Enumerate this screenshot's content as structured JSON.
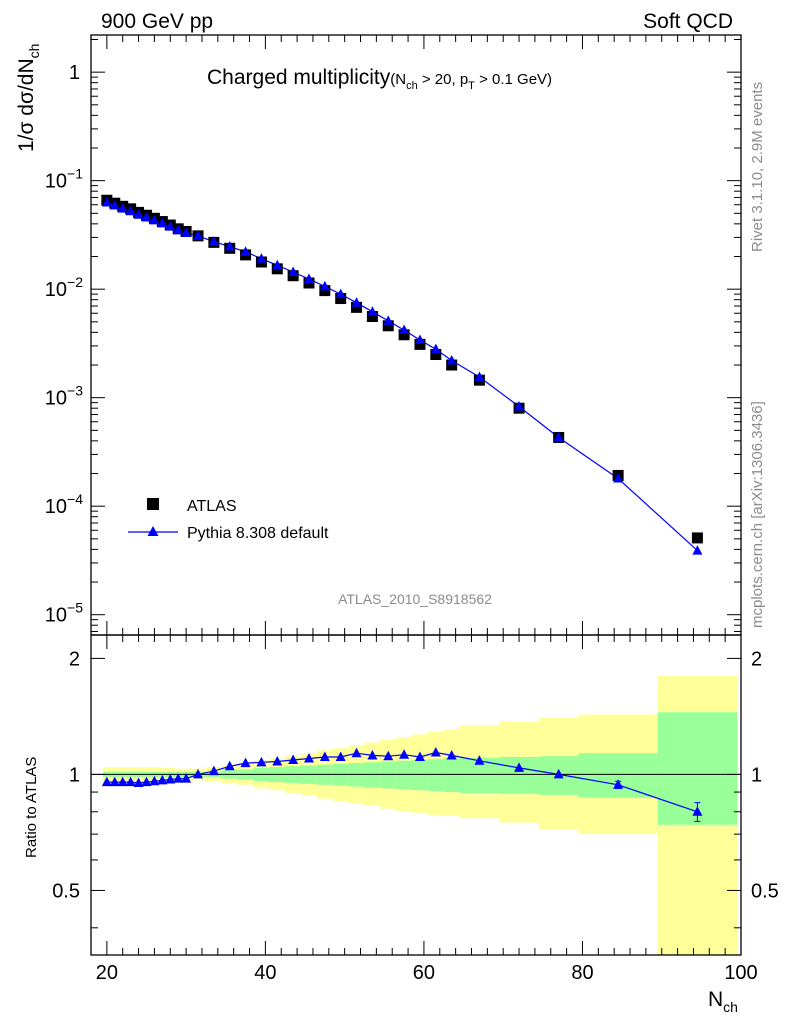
{
  "header": {
    "left": "900 GeV pp",
    "right": "Soft QCD"
  },
  "title": {
    "main": "Charged multiplicity",
    "cuts_open": "(N",
    "cuts_sub1": "ch",
    "cuts_mid": " > 20, p",
    "cuts_sub2": "T",
    "cuts_end": " > 0.1 GeV)"
  },
  "side_labels": {
    "rivet": "Rivet 3.1.10,  2.9M events",
    "mcplots": "mcplots.cern.ch [arXiv:1306.3436]"
  },
  "analysis_id": "ATLAS_2010_S8918562",
  "axes": {
    "ylabel_main": "1/σ dσ/dN",
    "ylabel_main_sub": "ch",
    "ylabel_ratio": "Ratio to ATLAS",
    "xlabel": "N",
    "xlabel_sub": "ch",
    "x_ticks": [
      "20",
      "40",
      "60",
      "80",
      "100"
    ],
    "y_main_ticks": [
      {
        "v": 1,
        "base": "1",
        "exp": ""
      },
      {
        "v": 0.1,
        "base": "10",
        "exp": "−1"
      },
      {
        "v": 0.01,
        "base": "10",
        "exp": "−2"
      },
      {
        "v": 0.001,
        "base": "10",
        "exp": "−3"
      },
      {
        "v": 0.0001,
        "base": "10",
        "exp": "−4"
      },
      {
        "v": 1e-05,
        "base": "10",
        "exp": "−5"
      }
    ],
    "y_ratio_ticks": [
      {
        "v": 2,
        "label": "2"
      },
      {
        "v": 1,
        "label": "1"
      },
      {
        "v": 0.5,
        "label": "0.5"
      }
    ]
  },
  "legend": {
    "position": "lower-left",
    "atlas": "ATLAS",
    "pythia": "Pythia 8.308 default"
  },
  "chart_data": {
    "type": "scatter",
    "title": "Charged multiplicity",
    "xlabel": "Nch",
    "ylabel": "1/σ dσ/dNch",
    "xlim": [
      18,
      100
    ],
    "ylim": [
      6.5e-06,
      2.2
    ],
    "y_scale": "log",
    "ratio_ylim": [
      0.34,
      2.3
    ],
    "ratio_y_scale": "log",
    "colors": {
      "atlas": "#000000",
      "pythia": "#0000ff",
      "band_inner": "#99ff99",
      "band_outer": "#ffff99"
    },
    "atlas": {
      "name": "ATLAS",
      "x": [
        20,
        21,
        22,
        23,
        24,
        25,
        26,
        27,
        28,
        29,
        30,
        31.5,
        33.5,
        35.5,
        37.5,
        39.5,
        41.5,
        43.5,
        45.5,
        47.5,
        49.5,
        51.5,
        53.5,
        55.5,
        57.5,
        59.5,
        61.5,
        63.5,
        67,
        72,
        77,
        84.5,
        94.5
      ],
      "y": [
        0.066,
        0.062,
        0.058,
        0.055,
        0.051,
        0.048,
        0.045,
        0.042,
        0.039,
        0.036,
        0.034,
        0.031,
        0.027,
        0.0238,
        0.0207,
        0.0178,
        0.0154,
        0.0133,
        0.0114,
        0.0097,
        0.0082,
        0.0068,
        0.0056,
        0.0046,
        0.0038,
        0.0031,
        0.0025,
        0.002,
        0.00145,
        0.0008,
        0.00043,
        0.000192,
        5.1e-05
      ]
    },
    "pythia": {
      "name": "Pythia 8.308 default",
      "x": [
        20,
        21,
        22,
        23,
        24,
        25,
        26,
        27,
        28,
        29,
        30,
        31.5,
        33.5,
        35.5,
        37.5,
        39.5,
        41.5,
        43.5,
        45.5,
        47.5,
        49.5,
        51.5,
        53.5,
        55.5,
        57.5,
        59.5,
        61.5,
        63.5,
        67,
        72,
        77,
        84.5,
        94.5
      ],
      "y": [
        0.063,
        0.059,
        0.0552,
        0.0522,
        0.0485,
        0.0458,
        0.0431,
        0.0404,
        0.0377,
        0.0349,
        0.033,
        0.031,
        0.0274,
        0.0247,
        0.0221,
        0.0191,
        0.0166,
        0.0144,
        0.0124,
        0.0106,
        0.009,
        0.0075,
        0.0062,
        0.0051,
        0.0042,
        0.0034,
        0.0028,
        0.0022,
        0.00155,
        0.00083,
        0.00043,
        0.00018,
        3.9e-05
      ]
    },
    "ratio": {
      "x": [
        20,
        21,
        22,
        23,
        24,
        25,
        26,
        27,
        28,
        29,
        30,
        31.5,
        33.5,
        35.5,
        37.5,
        39.5,
        41.5,
        43.5,
        45.5,
        47.5,
        49.5,
        51.5,
        53.5,
        55.5,
        57.5,
        59.5,
        61.5,
        63.5,
        67,
        72,
        77,
        84.5,
        94.5
      ],
      "y": [
        0.955,
        0.955,
        0.955,
        0.955,
        0.95,
        0.955,
        0.96,
        0.965,
        0.97,
        0.975,
        0.975,
        1.0,
        1.02,
        1.05,
        1.07,
        1.075,
        1.08,
        1.09,
        1.1,
        1.11,
        1.11,
        1.135,
        1.12,
        1.115,
        1.125,
        1.11,
        1.14,
        1.12,
        1.085,
        1.04,
        1.0,
        0.94,
        0.8
      ],
      "yerr": [
        0,
        0,
        0,
        0,
        0,
        0,
        0,
        0,
        0,
        0,
        0,
        0,
        0,
        0,
        0,
        0,
        0,
        0,
        0,
        0,
        0,
        0,
        0,
        0,
        0,
        0,
        0,
        0,
        0,
        0,
        0,
        0.02,
        0.045
      ]
    },
    "bands": {
      "edges": [
        19.5,
        20.5,
        21.5,
        22.5,
        23.5,
        24.5,
        25.5,
        26.5,
        27.5,
        28.5,
        29.5,
        30.5,
        32.5,
        34.5,
        36.5,
        38.5,
        40.5,
        42.5,
        44.5,
        46.5,
        48.5,
        50.5,
        52.5,
        54.5,
        56.5,
        58.5,
        60.5,
        62.5,
        64.5,
        69.5,
        74.5,
        79.5,
        89.5,
        99.5
      ],
      "inner_lo": [
        0.985,
        0.985,
        0.985,
        0.985,
        0.985,
        0.985,
        0.985,
        0.985,
        0.985,
        0.985,
        0.985,
        0.985,
        0.983,
        0.975,
        0.97,
        0.96,
        0.955,
        0.95,
        0.945,
        0.94,
        0.935,
        0.93,
        0.925,
        0.92,
        0.915,
        0.91,
        0.905,
        0.9,
        0.895,
        0.89,
        0.885,
        0.87,
        0.74
      ],
      "inner_hi": [
        1.015,
        1.015,
        1.015,
        1.015,
        1.015,
        1.015,
        1.015,
        1.015,
        1.015,
        1.015,
        1.015,
        1.015,
        1.017,
        1.025,
        1.03,
        1.04,
        1.045,
        1.05,
        1.055,
        1.06,
        1.065,
        1.07,
        1.075,
        1.08,
        1.085,
        1.09,
        1.095,
        1.1,
        1.105,
        1.11,
        1.115,
        1.135,
        1.45
      ],
      "outer_lo": [
        0.955,
        0.955,
        0.955,
        0.955,
        0.955,
        0.955,
        0.955,
        0.96,
        0.96,
        0.965,
        0.965,
        0.965,
        0.96,
        0.95,
        0.94,
        0.92,
        0.91,
        0.895,
        0.88,
        0.865,
        0.85,
        0.84,
        0.83,
        0.815,
        0.8,
        0.795,
        0.785,
        0.78,
        0.77,
        0.75,
        0.72,
        0.7,
        0.3
      ],
      "outer_hi": [
        1.045,
        1.045,
        1.045,
        1.045,
        1.045,
        1.045,
        1.045,
        1.04,
        1.04,
        1.035,
        1.035,
        1.035,
        1.045,
        1.055,
        1.07,
        1.085,
        1.1,
        1.115,
        1.135,
        1.155,
        1.17,
        1.19,
        1.21,
        1.23,
        1.25,
        1.27,
        1.29,
        1.31,
        1.34,
        1.37,
        1.4,
        1.43,
        1.8
      ]
    }
  }
}
